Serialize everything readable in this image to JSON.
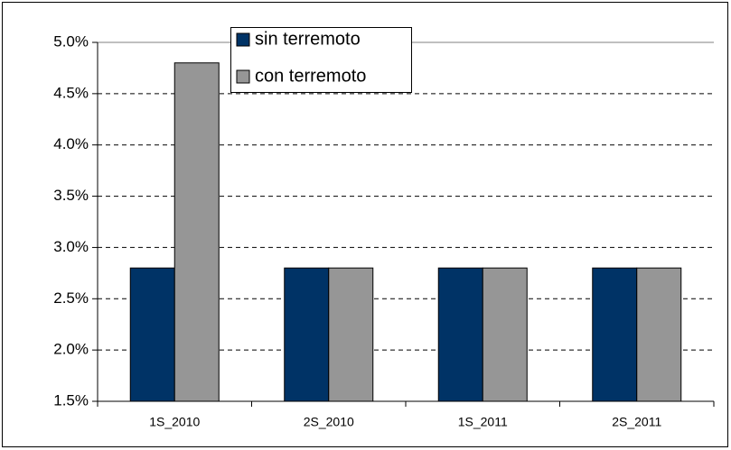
{
  "chart_data": {
    "type": "bar",
    "categories": [
      "1S_2010",
      "2S_2010",
      "1S_2011",
      "2S_2011"
    ],
    "series": [
      {
        "name": "sin terremoto",
        "color": "#003366",
        "values": [
          2.8,
          2.8,
          2.8,
          2.8
        ]
      },
      {
        "name": "con terremoto",
        "color": "#969696",
        "values": [
          4.8,
          2.8,
          2.8,
          2.8
        ]
      }
    ],
    "ylim": [
      1.5,
      5.0
    ],
    "yticks": [
      {
        "value": 1.5,
        "label": "1.5%"
      },
      {
        "value": 2.0,
        "label": "2.0%"
      },
      {
        "value": 2.5,
        "label": "2.5%"
      },
      {
        "value": 3.0,
        "label": "3.0%"
      },
      {
        "value": 3.5,
        "label": "3.5%"
      },
      {
        "value": 4.0,
        "label": "4.0%"
      },
      {
        "value": 4.5,
        "label": "4.5%"
      },
      {
        "value": 5.0,
        "label": "5.0%"
      }
    ],
    "grid": true,
    "legend": "top"
  }
}
